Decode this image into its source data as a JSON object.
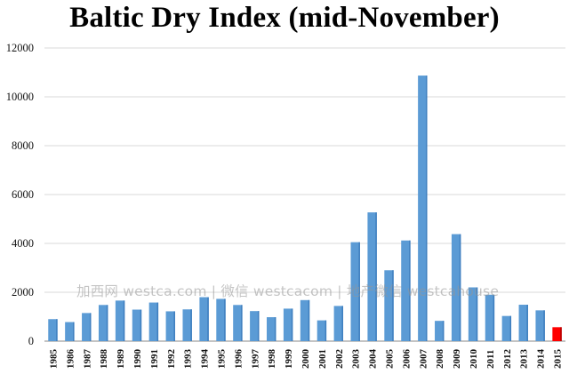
{
  "colors": {
    "bar": "#5b9bd5",
    "highlight": "#ff0000",
    "grid": "#d9d9d9",
    "axis": "#888888"
  },
  "watermark": "加西网 westca.com | 微信 westcacom | 地产微信 westcahouse",
  "chart_data": {
    "type": "bar",
    "title": "Baltic Dry Index (mid-November)",
    "xlabel": "",
    "ylabel": "",
    "ylim": [
      0,
      12000
    ],
    "yticks": [
      0,
      2000,
      4000,
      6000,
      8000,
      10000,
      12000
    ],
    "grid": true,
    "legend": "none",
    "categories": [
      "1985",
      "1986",
      "1987",
      "1988",
      "1989",
      "1990",
      "1991",
      "1992",
      "1993",
      "1994",
      "1995",
      "1996",
      "1997",
      "1998",
      "1999",
      "2000",
      "2001",
      "2002",
      "2003",
      "2004",
      "2005",
      "2006",
      "2007",
      "2008",
      "2009",
      "2010",
      "2011",
      "2012",
      "2013",
      "2014",
      "2015"
    ],
    "values": [
      900,
      780,
      1150,
      1480,
      1660,
      1290,
      1580,
      1220,
      1300,
      1800,
      1730,
      1480,
      1230,
      980,
      1330,
      1680,
      850,
      1440,
      4050,
      5270,
      2900,
      4120,
      10870,
      830,
      4380,
      2200,
      1900,
      1030,
      1490,
      1260,
      570
    ],
    "highlight_category": "2015"
  }
}
